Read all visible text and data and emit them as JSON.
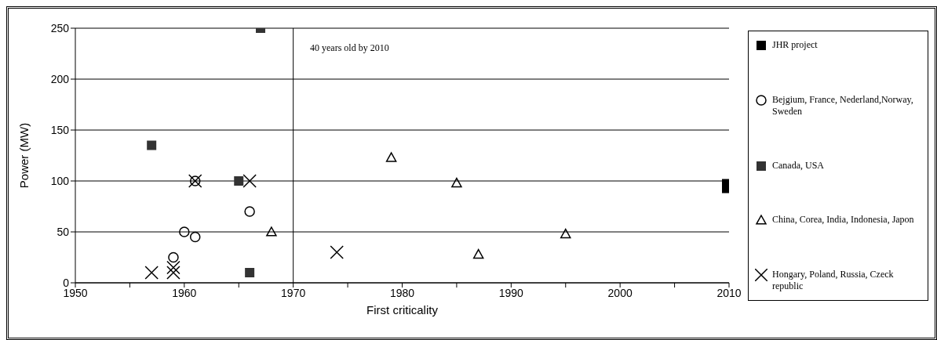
{
  "chart_data": {
    "type": "scatter",
    "xlabel": "First criticality",
    "ylabel": "Power (MW)",
    "xlim": [
      1950,
      2010
    ],
    "xticks": [
      1950,
      {
        "value": 1955,
        "label": null
      },
      1960,
      {
        "value": 1965,
        "label": null
      },
      1970,
      {
        "value": 1975,
        "label": null
      },
      1980,
      {
        "value": 1985,
        "label": null
      },
      1990,
      {
        "value": 1995,
        "label": null
      },
      2000,
      {
        "value": 2005,
        "label": null
      },
      2010
    ],
    "ylim": [
      0,
      250
    ],
    "yticks": [
      0,
      50,
      100,
      150,
      200,
      250
    ],
    "grid": "y",
    "legend": "right",
    "ref_lines": [
      {
        "axis": "x",
        "value": 1970,
        "label": "40 years old by 2010",
        "color": "#000000"
      }
    ],
    "series": [
      {
        "name": "JHR project",
        "color": "#000000",
        "marker": "square",
        "x": [
          2010
        ],
        "values": [
          95
        ]
      },
      {
        "name": "Bejgium, France, Nederland,Norway, Sweden",
        "color": "#000000",
        "marker": "circle",
        "x": [
          1959,
          1960,
          1961,
          1961,
          1966
        ],
        "values": [
          25,
          50,
          45,
          100,
          70
        ]
      },
      {
        "name": "Canada, USA",
        "color": "#333333",
        "marker": "square",
        "x": [
          1957,
          1965,
          1966,
          1967
        ],
        "values": [
          135,
          100,
          10,
          250
        ]
      },
      {
        "name": "China, Corea, India, Indonesia, Japon",
        "color": "#000000",
        "marker": "triangle",
        "x": [
          1968,
          1979,
          1985,
          1987,
          1995
        ],
        "values": [
          50,
          123,
          98,
          28,
          48
        ]
      },
      {
        "name": "Hongary, Poland, Russia, Czeck republic",
        "color": "#000000",
        "marker": "cross",
        "x": [
          1957,
          1959,
          1959,
          1961,
          1966,
          1974
        ],
        "values": [
          10,
          10,
          15,
          100,
          100,
          30
        ]
      }
    ]
  }
}
